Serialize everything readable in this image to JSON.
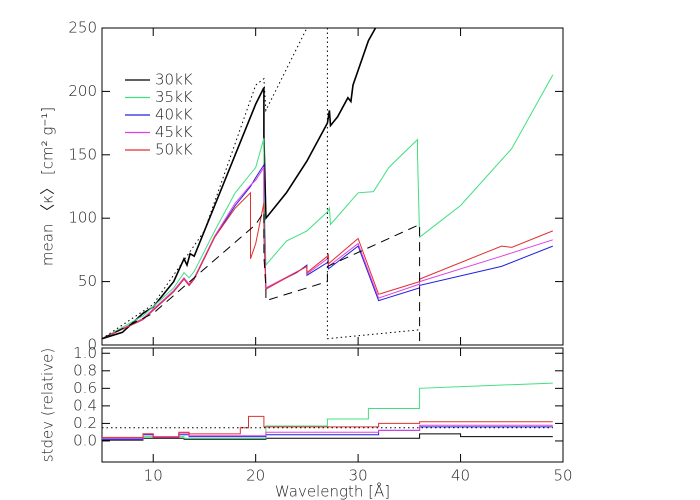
{
  "chart_data": [
    {
      "type": "line",
      "ylabel": "mean 〈κ〉 [cm² g⁻¹]",
      "legend": "upper left",
      "xtick_labels": false,
      "xlim": [
        5,
        50
      ],
      "ylim": [
        0,
        250
      ],
      "xticks": [
        10,
        20,
        30,
        40,
        50
      ],
      "yticks": [
        0,
        50,
        100,
        150,
        200,
        250
      ],
      "series": [
        {
          "name": "30kK",
          "color": "#000000",
          "x": [
            5,
            7,
            9,
            10,
            12,
            13,
            13.3,
            13.6,
            14,
            16,
            18,
            20,
            20.8,
            20.8,
            21,
            23,
            25,
            27,
            27.2,
            27.3,
            28,
            29,
            29.3,
            29.5,
            31,
            31.7
          ],
          "values": [
            5,
            10,
            25,
            30,
            50,
            68,
            63,
            72,
            70,
            110,
            150,
            190,
            203,
            165,
            100,
            120,
            145,
            175,
            185,
            173,
            180,
            195,
            192,
            205,
            240,
            250
          ]
        },
        {
          "name": "35kK",
          "color": "#40e080",
          "x": [
            5,
            9,
            12,
            13,
            13.5,
            14,
            16,
            18,
            20,
            20.8,
            20.8,
            21,
            23,
            25,
            27,
            27.2,
            27.3,
            30,
            31.5,
            33,
            35.8,
            35.8,
            36,
            40,
            45,
            49
          ],
          "values": [
            5,
            23,
            45,
            57,
            53,
            58,
            90,
            120,
            140,
            163,
            130,
            63,
            82,
            90,
            105,
            108,
            95,
            120,
            121,
            140,
            162,
            150,
            85,
            110,
            155,
            213
          ]
        },
        {
          "name": "40kK",
          "color": "#2020e0",
          "x": [
            5,
            9,
            12,
            13,
            13.5,
            14,
            16,
            18,
            19.5,
            20,
            20.8,
            20.8,
            21,
            24,
            25,
            25,
            27,
            27.1,
            27.1,
            30,
            32,
            36,
            36,
            44,
            49
          ],
          "values": [
            5,
            20,
            42,
            52,
            47,
            52,
            85,
            110,
            125,
            132,
            142,
            110,
            45,
            57,
            63,
            55,
            65,
            68,
            60,
            78,
            35,
            45,
            47,
            62,
            78
          ]
        },
        {
          "name": "45kK",
          "color": "#e040e0",
          "x": [
            5,
            9,
            12,
            13,
            13.5,
            14,
            16,
            18,
            19.5,
            20,
            20.8,
            20.8,
            21,
            25,
            25,
            27,
            27.1,
            27.1,
            30,
            32,
            36,
            36,
            44,
            49
          ],
          "values": [
            5,
            21,
            43,
            53,
            48,
            53,
            86,
            112,
            126,
            130,
            140,
            105,
            45,
            62,
            56,
            68,
            70,
            62,
            80,
            37,
            48,
            50,
            70,
            83
          ]
        },
        {
          "name": "50kK",
          "color": "#e03030",
          "x": [
            5,
            9,
            12,
            13,
            13.5,
            14,
            16,
            18,
            19.5,
            19.5,
            20,
            20.8,
            20.8,
            21,
            25,
            25,
            27,
            27.1,
            27.1,
            30,
            32,
            36,
            36,
            44,
            45,
            49
          ],
          "values": [
            5,
            20,
            42,
            52,
            47,
            52,
            85,
            108,
            120,
            68,
            80,
            112,
            85,
            44,
            62,
            57,
            70,
            72,
            64,
            84,
            40,
            50,
            52,
            78,
            77,
            90
          ]
        },
        {
          "color": "#000000",
          "dash": "dotted",
          "x": [
            5,
            10,
            15,
            20,
            20.8,
            21,
            25,
            null,
            27,
            27,
            36,
            36
          ],
          "values": [
            5,
            32,
            90,
            205,
            210,
            185,
            250,
            null,
            250,
            5,
            12,
            12
          ]
        },
        {
          "color": "#000000",
          "dash": "dashed",
          "x": [
            5,
            10,
            15,
            20,
            20.8,
            20.8,
            21,
            21,
            27,
            27,
            36,
            36
          ],
          "values": [
            5,
            25,
            60,
            95,
            105,
            70,
            45,
            35,
            50,
            62,
            95,
            0
          ]
        }
      ]
    },
    {
      "type": "line",
      "xlabel": "Wavelength [Å]",
      "ylabel": "stdev (relative)",
      "xlim": [
        5,
        50
      ],
      "ylim": [
        -0.24,
        1.06
      ],
      "xticks": [
        10,
        20,
        30,
        40,
        50
      ],
      "yticks": [
        {
          "value": 0,
          "label": "0.0"
        },
        0.2,
        0.4,
        0.6,
        0.8,
        {
          "value": 1,
          "label": "1.0"
        }
      ],
      "series": [
        {
          "color": "#000000",
          "x": [
            5,
            9,
            9,
            13,
            13,
            21,
            21,
            36,
            36,
            40,
            40,
            49
          ],
          "values": [
            0.01,
            0.01,
            0.03,
            0.03,
            0.02,
            0.02,
            0.03,
            0.03,
            0.08,
            0.08,
            0.05,
            0.05
          ]
        },
        {
          "color": "#40e080",
          "x": [
            5,
            9,
            9,
            13,
            13,
            21,
            21,
            27,
            27,
            31,
            31,
            36,
            36,
            49
          ],
          "values": [
            0.02,
            0.02,
            0.05,
            0.05,
            0.03,
            0.03,
            0.17,
            0.17,
            0.25,
            0.25,
            0.37,
            0.37,
            0.6,
            0.66
          ]
        },
        {
          "color": "#2020e0",
          "x": [
            5,
            9,
            9,
            10,
            10,
            12.5,
            12.5,
            13.5,
            13.5,
            21,
            21,
            32,
            32,
            36,
            36,
            49
          ],
          "values": [
            0.02,
            0.02,
            0.07,
            0.07,
            0.04,
            0.04,
            0.07,
            0.07,
            0.05,
            0.05,
            0.07,
            0.07,
            0.12,
            0.12,
            0.16,
            0.16
          ]
        },
        {
          "color": "#e040e0",
          "x": [
            5,
            9,
            9,
            10,
            10,
            12.5,
            12.5,
            13.5,
            13.5,
            21,
            21,
            32,
            32,
            36,
            36,
            49
          ],
          "values": [
            0.03,
            0.03,
            0.08,
            0.08,
            0.05,
            0.05,
            0.09,
            0.09,
            0.06,
            0.06,
            0.1,
            0.1,
            0.12,
            0.12,
            0.18,
            0.18
          ]
        },
        {
          "color": "#e03030",
          "x": [
            5,
            9,
            9,
            10,
            10,
            12.5,
            12.5,
            13.5,
            13.5,
            18.5,
            18.5,
            19.3,
            19.3,
            20.8,
            20.8,
            32,
            32,
            36,
            36,
            49
          ],
          "values": [
            0.04,
            0.04,
            0.08,
            0.08,
            0.04,
            0.04,
            0.1,
            0.1,
            0.08,
            0.08,
            0.15,
            0.15,
            0.28,
            0.28,
            0.16,
            0.16,
            0.2,
            0.2,
            0.22,
            0.22
          ]
        },
        {
          "color": "#000000",
          "dash": "dotted",
          "x": [
            5,
            49
          ],
          "values": [
            0.15,
            0.15
          ]
        }
      ]
    }
  ]
}
